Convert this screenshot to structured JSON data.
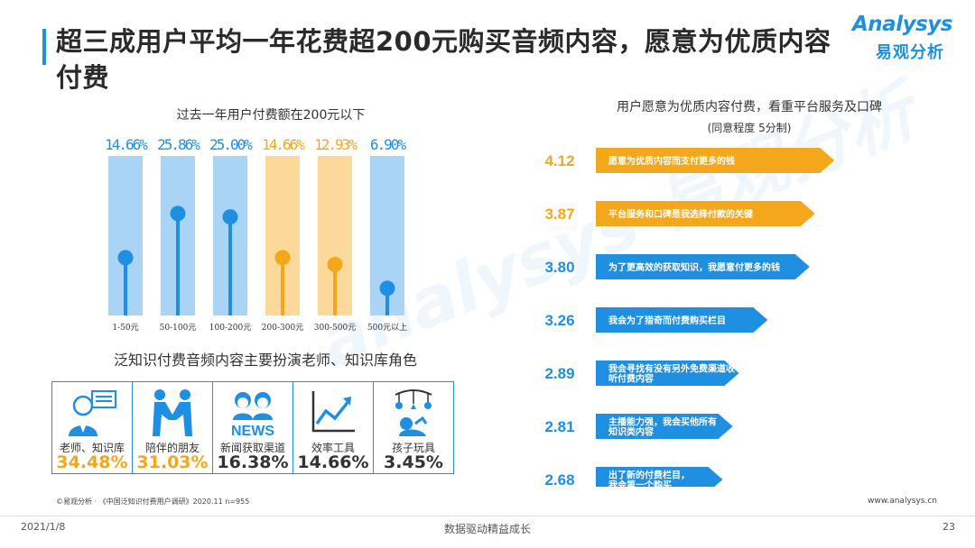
{
  "title": "超三成用户平均一年花费超200元购买音频内容，愿意为优质内容付费",
  "logo": {
    "en": "Analysys",
    "cn": "易观分析"
  },
  "watermark": "analysys 易观分析",
  "colors": {
    "accent": "#1e8fe1",
    "orange": "#f5a71b",
    "footer_text": "#555555"
  },
  "left_chart": {
    "title": "过去一年用户付费额在200元以下"
  },
  "roles_section": {
    "title": "泛知识付费音频内容主要扮演老师、知识库角色",
    "items": [
      {
        "label": "老师、知识库",
        "value": "34.48%",
        "icon": "teacher-icon",
        "color": "#f5a71b"
      },
      {
        "label": "陪伴的朋友",
        "value": "31.03%",
        "icon": "handshake-icon",
        "color": "#f5a71b"
      },
      {
        "label": "新闻获取渠道",
        "value": "16.38%",
        "icon": "news-icon",
        "color": "#333333"
      },
      {
        "label": "效率工具",
        "value": "14.66%",
        "icon": "trend-chart-icon",
        "color": "#333333"
      },
      {
        "label": "孩子玩具",
        "value": "3.45%",
        "icon": "baby-mobile-icon",
        "color": "#333333"
      }
    ]
  },
  "right_chart": {
    "title": "用户愿意为优质内容付费，看重平台服务及口碑",
    "subtitle": "(同意程度 5分制)"
  },
  "chart_data": [
    {
      "type": "bar",
      "title": "过去一年用户付费额在200元以下",
      "categories": [
        "1-50元",
        "50-100元",
        "100-200元",
        "200-300元",
        "300-500元",
        "500元以上"
      ],
      "values": [
        14.66,
        25.86,
        25.0,
        14.66,
        12.93,
        6.9
      ],
      "value_labels": [
        "14.66%",
        "25.86%",
        "25.00%",
        "14.66%",
        "12.93%",
        "6.90%"
      ],
      "colors": [
        "#1e8fe1",
        "#1e8fe1",
        "#1e8fe1",
        "#f5a71b",
        "#f5a71b",
        "#1e8fe1"
      ],
      "ylim": [
        0,
        40
      ]
    },
    {
      "type": "bar",
      "orientation": "horizontal",
      "title": "用户愿意为优质内容付费，看重平台服务及口碑",
      "subtitle": "(同意程度 5分制)",
      "categories": [
        "愿意为优质内容而支付更多的钱",
        "平台服务和口碑是我选择付款的关键",
        "为了更高效的获取知识，我愿意付更多的钱",
        "我会为了猎奇而付费购买栏目",
        "我会寻找有没有另外免费渠道收听付费内容",
        "主播能力强，我会买他所有知识类内容",
        "出了新的付费栏目，我会第一个购买"
      ],
      "label_lines": [
        [
          "愿意为优质内容而支付更多的钱"
        ],
        [
          "平台服务和口碑是我选择付款的关键"
        ],
        [
          "为了更高效的获取知识，我愿意付更多的钱"
        ],
        [
          "我会为了猎奇而付费购买栏目"
        ],
        [
          "我会寻找有没有另外免费渠道收",
          "听付费内容"
        ],
        [
          "主播能力强，我会买他所有",
          "知识类内容"
        ],
        [
          "出了新的付费栏目，",
          "我会第一个购买"
        ]
      ],
      "values": [
        4.12,
        3.87,
        3.8,
        3.26,
        2.89,
        2.81,
        2.68
      ],
      "value_labels": [
        "4.12",
        "3.87",
        "3.80",
        "3.26",
        "2.89",
        "2.81",
        "2.68"
      ],
      "colors": [
        "#f5a71b",
        "#f5a71b",
        "#1e8fe1",
        "#1e8fe1",
        "#1e8fe1",
        "#1e8fe1",
        "#1e8fe1"
      ],
      "xlim": [
        0,
        5
      ]
    }
  ],
  "footer": {
    "source": "©易观分析 · 《中国泛知识付费用户调研》2020.11 n=955",
    "website": "www.analysys.cn",
    "date": "2021/1/8",
    "slogan": "数据驱动精益成长",
    "page": "23"
  }
}
